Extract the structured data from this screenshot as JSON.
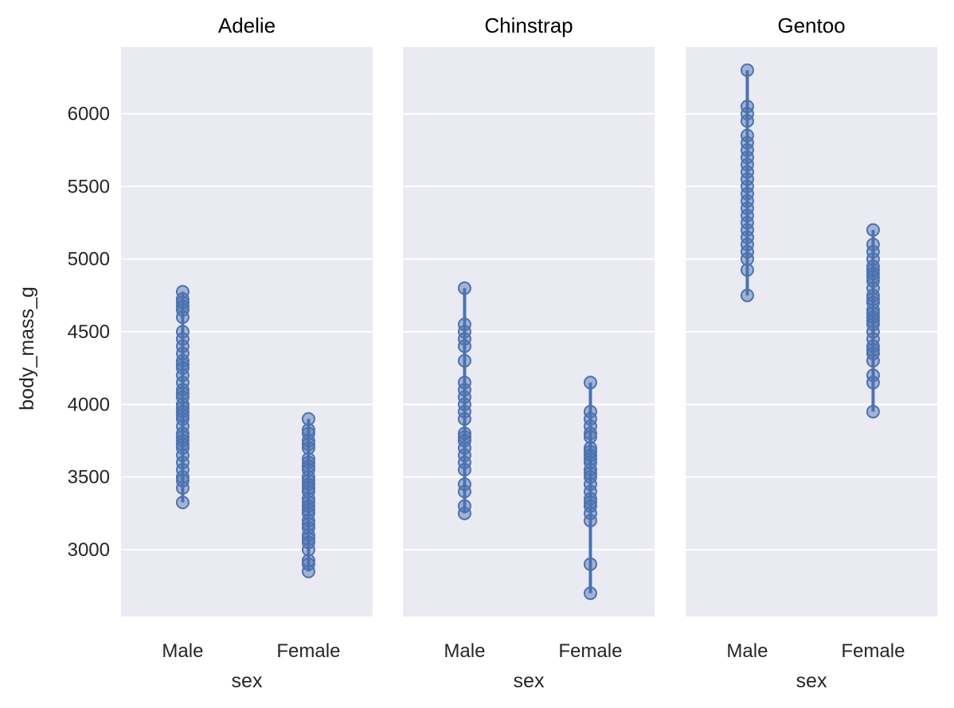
{
  "chart_data": {
    "type": "scatter",
    "facet_by": "species",
    "ylabel": "body_mass_g",
    "xlabel": "sex",
    "categories": [
      "Male",
      "Female"
    ],
    "ylim": [
      2540,
      6460
    ],
    "yticks": [
      3000,
      3500,
      4000,
      4500,
      5000,
      5500,
      6000
    ],
    "grid": true,
    "point_color": "#4c72b0",
    "panel_color": "#eaeaf2",
    "panels": [
      {
        "title": "Adelie",
        "series": [
          {
            "category": "Male",
            "min": 3325,
            "max": 4775,
            "values": [
              3325,
              3425,
              3475,
              3500,
              3550,
              3600,
              3650,
              3700,
              3725,
              3750,
              3775,
              3800,
              3850,
              3900,
              3925,
              3950,
              3975,
              4000,
              4050,
              4075,
              4100,
              4150,
              4200,
              4250,
              4275,
              4300,
              4350,
              4400,
              4450,
              4500,
              4600,
              4650,
              4675,
              4700,
              4725,
              4775
            ]
          },
          {
            "category": "Female",
            "min": 2850,
            "max": 3900,
            "values": [
              2850,
              2900,
              2925,
              3000,
              3050,
              3075,
              3100,
              3150,
              3175,
              3200,
              3250,
              3275,
              3300,
              3325,
              3350,
              3400,
              3425,
              3450,
              3475,
              3500,
              3550,
              3575,
              3600,
              3625,
              3700,
              3725,
              3750,
              3800,
              3825,
              3900
            ]
          }
        ]
      },
      {
        "title": "Chinstrap",
        "series": [
          {
            "category": "Male",
            "min": 3250,
            "max": 4800,
            "values": [
              3250,
              3300,
              3400,
              3450,
              3550,
              3600,
              3650,
              3700,
              3750,
              3775,
              3800,
              3900,
              3950,
              4000,
              4050,
              4100,
              4150,
              4300,
              4400,
              4450,
              4500,
              4550,
              4800
            ]
          },
          {
            "category": "Female",
            "min": 2700,
            "max": 4150,
            "values": [
              2700,
              2900,
              3200,
              3250,
              3300,
              3325,
              3350,
              3400,
              3450,
              3500,
              3525,
              3550,
              3600,
              3625,
              3650,
              3675,
              3700,
              3775,
              3800,
              3850,
              3900,
              3950,
              4150
            ]
          }
        ]
      },
      {
        "title": "Gentoo",
        "series": [
          {
            "category": "Male",
            "min": 4750,
            "max": 6300,
            "values": [
              4750,
              4925,
              5000,
              5050,
              5100,
              5150,
              5200,
              5250,
              5300,
              5350,
              5400,
              5450,
              5500,
              5550,
              5600,
              5650,
              5700,
              5750,
              5800,
              5850,
              5950,
              6000,
              6050,
              6300
            ]
          },
          {
            "category": "Female",
            "min": 3950,
            "max": 5200,
            "values": [
              3950,
              4150,
              4200,
              4300,
              4350,
              4375,
              4400,
              4450,
              4500,
              4550,
              4575,
              4600,
              4625,
              4650,
              4700,
              4725,
              4750,
              4800,
              4850,
              4875,
              4900,
              4925,
              4950,
              5000,
              5050,
              5100,
              5200
            ]
          }
        ]
      }
    ]
  }
}
